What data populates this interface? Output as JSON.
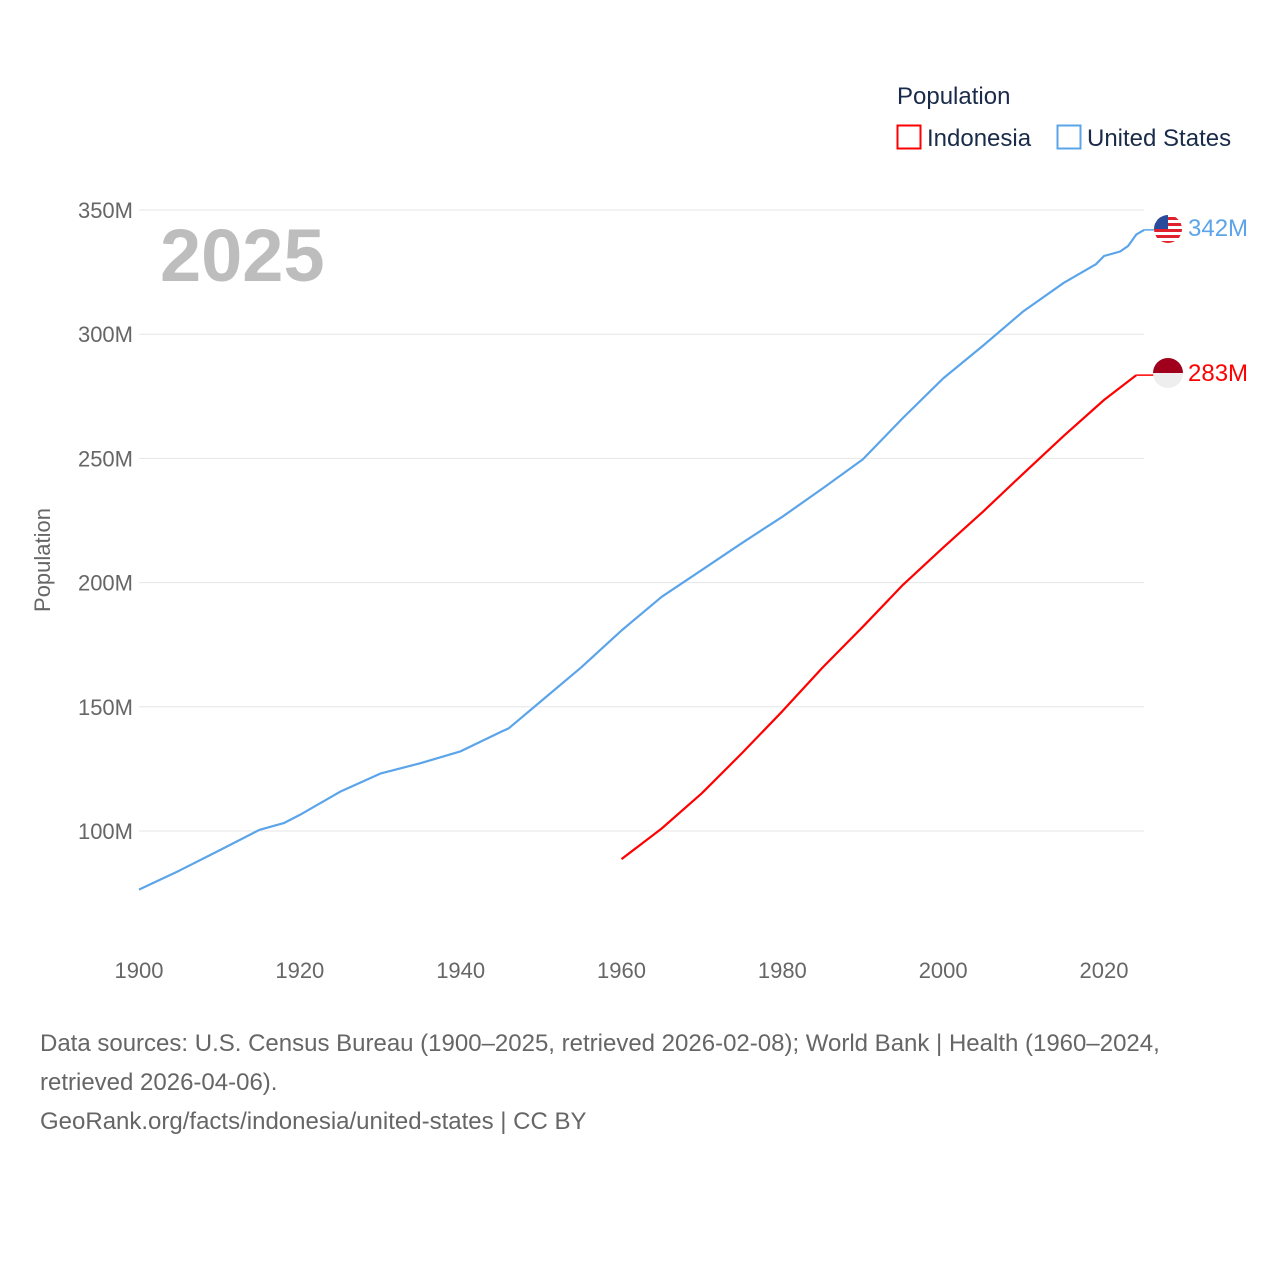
{
  "chart_data": {
    "type": "line",
    "title": "",
    "year_label": "2025",
    "xlabel": "",
    "ylabel": "Population",
    "xlim": [
      1900,
      2025
    ],
    "ylim": [
      60,
      360
    ],
    "x_ticks": [
      1900,
      1920,
      1940,
      1960,
      1980,
      2000,
      2020
    ],
    "y_ticks": [
      100,
      150,
      200,
      250,
      300,
      350
    ],
    "y_tick_labels": [
      "100M",
      "150M",
      "200M",
      "250M",
      "300M",
      "350M"
    ],
    "grid": true,
    "legend": {
      "title": "Population",
      "placement": "top-right"
    },
    "series": [
      {
        "name": "Indonesia",
        "color": "#ff0000",
        "end_label": "283M",
        "flag": "indonesia-flag",
        "x": [
          1960,
          1965,
          1970,
          1975,
          1980,
          1985,
          1990,
          1995,
          2000,
          2005,
          2010,
          2015,
          2020,
          2024
        ],
        "values": [
          88.7,
          101,
          115.2,
          131.4,
          148.2,
          165.8,
          182.2,
          199.1,
          214.1,
          228.7,
          244.0,
          259.1,
          273.5,
          283.5
        ]
      },
      {
        "name": "United States",
        "color": "#5ba4ea",
        "end_label": "342M",
        "flag": "usa-flag",
        "x": [
          1900,
          1905,
          1910,
          1915,
          1918,
          1920,
          1925,
          1930,
          1935,
          1940,
          1945,
          1946,
          1950,
          1955,
          1960,
          1965,
          1970,
          1975,
          1980,
          1985,
          1990,
          1995,
          2000,
          2005,
          2010,
          2015,
          2019,
          2020,
          2022,
          2023,
          2024,
          2025
        ],
        "values": [
          76.4,
          84,
          92.2,
          100.5,
          103.2,
          106.5,
          115.8,
          123.1,
          127.3,
          132.1,
          139.9,
          141.4,
          152.3,
          165.9,
          180.7,
          194.3,
          205.1,
          216,
          226.5,
          237.9,
          249.6,
          266.3,
          282.2,
          295.5,
          309.3,
          320.7,
          328.2,
          331.5,
          333.3,
          335.5,
          340.1,
          342
        ]
      }
    ],
    "units": "millions"
  },
  "footer": {
    "sources": "Data sources: U.S. Census Bureau (1900–2025, retrieved 2026-02-08); World Bank | Health (1960–2024, retrieved 2026-04-06).",
    "credit": "GeoRank.org/facts/indonesia/united-states | CC BY"
  }
}
